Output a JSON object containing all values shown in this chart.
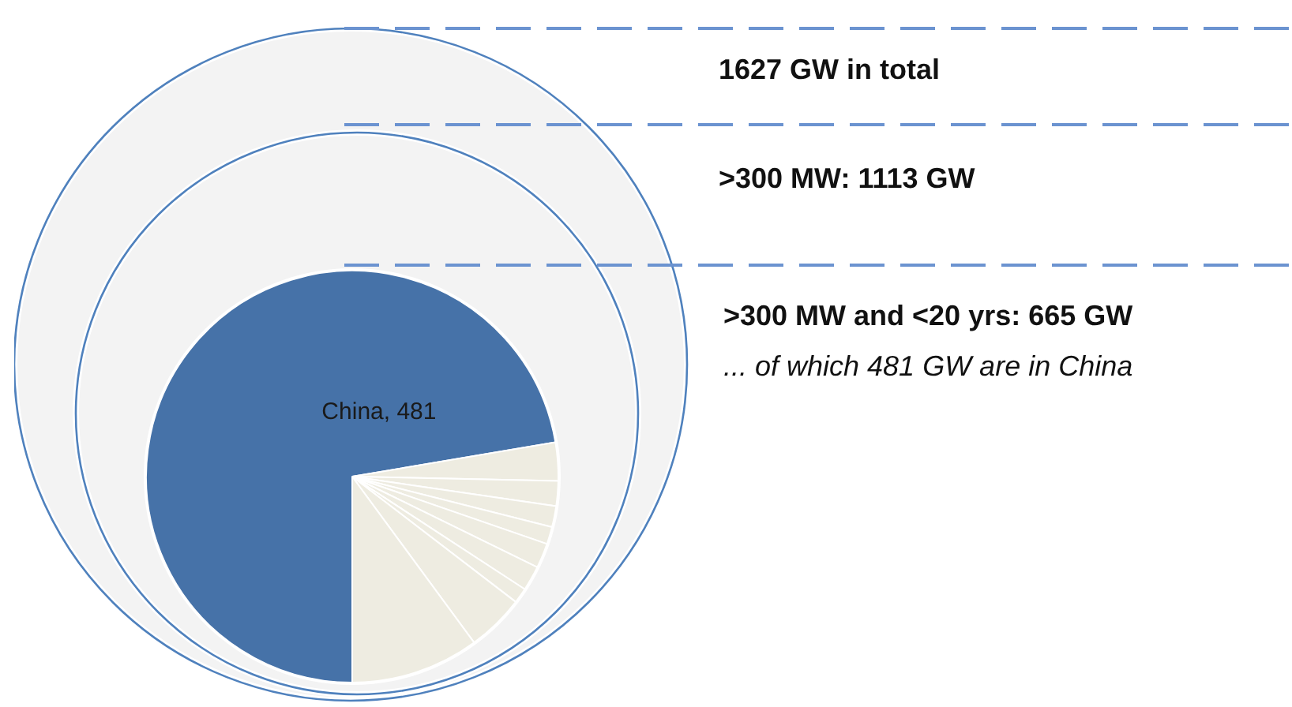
{
  "chart_data": {
    "type": "pie",
    "categories": [
      "China",
      null,
      null,
      null,
      null,
      null,
      null,
      null,
      null,
      null
    ],
    "values": [
      481,
      20,
      13,
      11,
      9,
      13,
      13,
      8,
      30,
      67
    ],
    "colors": [
      "#4672a8",
      "#eeece1",
      "#eeece1",
      "#eeece1",
      "#eeece1",
      "#eeece1",
      "#eeece1",
      "#eeece1",
      "#eeece1",
      "#eeece1"
    ],
    "value_labels": [
      "481",
      null,
      null,
      null,
      null,
      null,
      null,
      null,
      null,
      null
    ],
    "annotations": [
      "1627 GW in total",
      ">300 MW: 1113 GW",
      ">300 MW and <20 yrs: 665 GW",
      "... of which 481 GW are in China"
    ]
  }
}
